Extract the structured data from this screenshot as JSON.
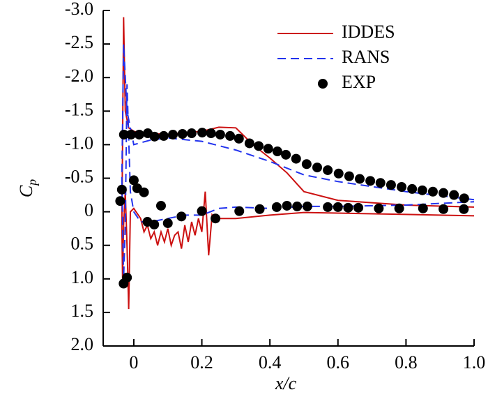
{
  "chart_data": {
    "type": "line",
    "xlabel": "x/c",
    "ylabel": {
      "text": "C",
      "subscript": "p"
    },
    "xlim": [
      -0.09,
      1.0
    ],
    "ylim": [
      -3.0,
      2.0
    ],
    "yinverted": true,
    "xticks": [
      0,
      0.2,
      0.4,
      0.6,
      0.8,
      {
        "value": 1.0,
        "label": "1.0"
      }
    ],
    "yticks": [
      {
        "value": -3.0,
        "label": "-3.0"
      },
      -2.5,
      {
        "value": -2.0,
        "label": "-2.0"
      },
      -1.5,
      {
        "value": -1.0,
        "label": "-1.0"
      },
      -0.5,
      0,
      0.5,
      {
        "value": 1.0,
        "label": "1.0"
      },
      1.5,
      {
        "value": 2.0,
        "label": "2.0"
      }
    ],
    "legend": "upper right",
    "series": [
      {
        "name": "IDDES",
        "color": "#cc1111",
        "mode": "line",
        "dash": "solid",
        "x": [
          1.0,
          0.8,
          0.6,
          0.5,
          0.45,
          0.4,
          0.35,
          0.3,
          0.25,
          0.2,
          0.15,
          0.1,
          0.05,
          0.02,
          0.0,
          -0.015,
          -0.025,
          -0.03,
          -0.033,
          -0.035,
          -0.033,
          -0.03,
          -0.025,
          -0.02,
          -0.015,
          -0.01,
          0.0,
          0.02,
          0.03,
          0.04,
          0.05,
          0.06,
          0.07,
          0.08,
          0.09,
          0.1,
          0.11,
          0.12,
          0.13,
          0.14,
          0.15,
          0.16,
          0.17,
          0.18,
          0.19,
          0.2,
          0.21,
          0.22,
          0.23,
          0.24,
          0.25,
          0.3,
          0.4,
          0.5,
          0.6,
          0.8,
          1.0
        ],
        "values": [
          -0.07,
          -0.1,
          -0.17,
          -0.3,
          -0.58,
          -0.8,
          -1.0,
          -1.25,
          -1.26,
          -1.2,
          -1.18,
          -1.15,
          -1.17,
          -1.17,
          -1.2,
          -1.25,
          -1.5,
          -2.9,
          -1.0,
          0.2,
          1.0,
          0.2,
          -0.3,
          0.5,
          1.45,
          0.0,
          -0.05,
          0.1,
          0.3,
          0.2,
          0.4,
          0.3,
          0.5,
          0.3,
          0.45,
          0.25,
          0.5,
          0.35,
          0.3,
          0.55,
          0.2,
          0.45,
          0.15,
          0.35,
          0.1,
          0.3,
          -0.3,
          0.65,
          0.05,
          0.15,
          0.1,
          0.1,
          0.05,
          0.01,
          0.02,
          0.04,
          0.06
        ]
      },
      {
        "name": "RANS",
        "color": "#2233ee",
        "mode": "line",
        "dash": "dashed",
        "x": [
          1.0,
          0.8,
          0.6,
          0.5,
          0.4,
          0.3,
          0.2,
          0.1,
          0.05,
          0.0,
          -0.02,
          -0.03,
          -0.035,
          -0.03,
          -0.025,
          -0.02,
          -0.01,
          0.0,
          0.02,
          0.05,
          0.1,
          0.15,
          0.2,
          0.25,
          0.3,
          0.4,
          0.5,
          0.6,
          0.8,
          1.0
        ],
        "values": [
          -0.18,
          -0.3,
          -0.45,
          -0.55,
          -0.75,
          -0.92,
          -1.05,
          -1.1,
          -1.07,
          -1.0,
          -1.5,
          -2.5,
          -0.5,
          1.0,
          0.2,
          -1.9,
          -0.3,
          0.0,
          0.15,
          0.15,
          0.1,
          0.05,
          0.05,
          -0.05,
          -0.07,
          -0.05,
          -0.08,
          -0.08,
          -0.1,
          -0.15
        ]
      },
      {
        "name": "EXP",
        "color": "#000000",
        "mode": "markers",
        "x": [
          -0.029,
          -0.008,
          0.016,
          0.041,
          0.061,
          0.088,
          0.115,
          0.143,
          0.17,
          0.201,
          0.227,
          0.254,
          0.283,
          0.309,
          0.34,
          0.367,
          0.395,
          0.422,
          0.447,
          0.477,
          0.508,
          0.539,
          0.57,
          0.602,
          0.633,
          0.664,
          0.695,
          0.725,
          0.756,
          0.787,
          0.818,
          0.848,
          0.879,
          0.91,
          0.941,
          0.971,
          -0.04,
          -0.035,
          0.0,
          0.01,
          0.03,
          0.04,
          0.06,
          0.08,
          0.1,
          0.14,
          0.2,
          0.24,
          0.31,
          0.37,
          0.42,
          0.45,
          0.48,
          0.51,
          0.57,
          0.6,
          0.63,
          0.66,
          0.72,
          0.78,
          0.85,
          0.91,
          0.97,
          -0.03,
          -0.02
        ],
        "values": [
          -1.15,
          -1.15,
          -1.15,
          -1.17,
          -1.12,
          -1.13,
          -1.15,
          -1.16,
          -1.17,
          -1.18,
          -1.17,
          -1.15,
          -1.13,
          -1.09,
          -1.02,
          -0.98,
          -0.94,
          -0.9,
          -0.85,
          -0.79,
          -0.71,
          -0.66,
          -0.62,
          -0.57,
          -0.53,
          -0.49,
          -0.46,
          -0.43,
          -0.4,
          -0.37,
          -0.34,
          -0.32,
          -0.3,
          -0.28,
          -0.25,
          -0.2,
          -0.16,
          -0.33,
          -0.47,
          -0.35,
          -0.29,
          0.15,
          0.19,
          -0.09,
          0.17,
          0.07,
          -0.01,
          0.1,
          -0.01,
          -0.04,
          -0.07,
          -0.09,
          -0.08,
          -0.08,
          -0.07,
          -0.07,
          -0.06,
          -0.06,
          -0.05,
          -0.05,
          -0.05,
          -0.04,
          -0.04,
          1.07,
          0.98
        ]
      }
    ]
  }
}
